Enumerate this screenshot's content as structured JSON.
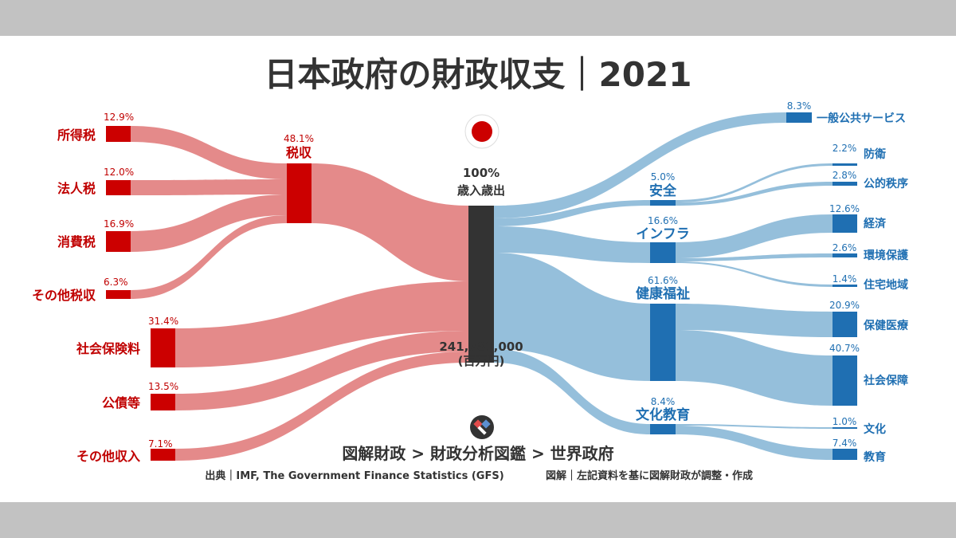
{
  "title": "日本政府の財政収支｜2021",
  "colors": {
    "revenue_node": "#cc0000",
    "revenue_flow": "#e48a8a",
    "expense_node": "#1f6fb2",
    "expense_flow": "#95bfdb",
    "center": "#333333",
    "flag_red": "#cc0000"
  },
  "icons": [
    "japan-flag-icon",
    "zukai-zaisei-logo-icon"
  ],
  "chart_data": {
    "type": "sankey",
    "title": "日本政府の財政収支｜2021",
    "center": {
      "label": "歳入歳出",
      "pct": "100%",
      "total": "241,781,000",
      "unit": "(百万円)"
    },
    "revenue": [
      {
        "name": "所得税",
        "pct": "12.9%",
        "value": 12.9,
        "parent": "税収"
      },
      {
        "name": "法人税",
        "pct": "12.0%",
        "value": 12.0,
        "parent": "税収"
      },
      {
        "name": "消費税",
        "pct": "16.9%",
        "value": 16.9,
        "parent": "税収"
      },
      {
        "name": "その他税収",
        "pct": "6.3%",
        "value": 6.3,
        "parent": "税収"
      },
      {
        "name": "税収",
        "pct": "48.1%",
        "value": 48.1
      },
      {
        "name": "社会保険料",
        "pct": "31.4%",
        "value": 31.4
      },
      {
        "name": "公債等",
        "pct": "13.5%",
        "value": 13.5
      },
      {
        "name": "その他収入",
        "pct": "7.1%",
        "value": 7.1
      }
    ],
    "expenditure": [
      {
        "name": "一般公共サービス",
        "pct": "8.3%",
        "value": 8.3
      },
      {
        "name": "安全",
        "pct": "5.0%",
        "value": 5.0
      },
      {
        "name": "防衛",
        "pct": "2.2%",
        "value": 2.2,
        "parent": "安全"
      },
      {
        "name": "公的秩序",
        "pct": "2.8%",
        "value": 2.8,
        "parent": "安全"
      },
      {
        "name": "インフラ",
        "pct": "16.6%",
        "value": 16.6
      },
      {
        "name": "経済",
        "pct": "12.6%",
        "value": 12.6,
        "parent": "インフラ"
      },
      {
        "name": "環境保護",
        "pct": "2.6%",
        "value": 2.6,
        "parent": "インフラ"
      },
      {
        "name": "住宅地域",
        "pct": "1.4%",
        "value": 1.4,
        "parent": "インフラ"
      },
      {
        "name": "健康福祉",
        "pct": "61.6%",
        "value": 61.6
      },
      {
        "name": "保健医療",
        "pct": "20.9%",
        "value": 20.9,
        "parent": "健康福祉"
      },
      {
        "name": "社会保障",
        "pct": "40.7%",
        "value": 40.7,
        "parent": "健康福祉"
      },
      {
        "name": "文化教育",
        "pct": "8.4%",
        "value": 8.4
      },
      {
        "name": "文化",
        "pct": "1.0%",
        "value": 1.0,
        "parent": "文化教育"
      },
      {
        "name": "教育",
        "pct": "7.4%",
        "value": 7.4,
        "parent": "文化教育"
      }
    ]
  },
  "footer": {
    "breadcrumb": "図解財政 > 財政分析図鑑 > 世界政府",
    "source": "出典｜IMF, The Government Finance Statistics (GFS)",
    "credit": "図解｜左記資料を基に図解財政が調整・作成"
  }
}
